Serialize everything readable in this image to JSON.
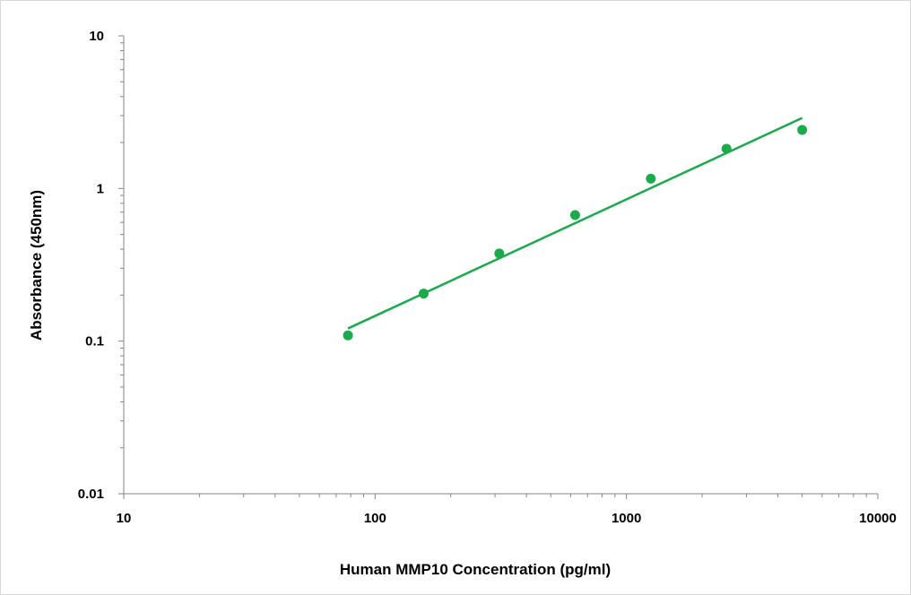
{
  "chart_data": {
    "type": "scatter",
    "title": "",
    "xlabel": "Human MMP10 Concentration (pg/ml)",
    "ylabel": "Absorbance (450nm)",
    "x_scale": "log",
    "y_scale": "log",
    "xlim": [
      10,
      10000
    ],
    "ylim": [
      0.01,
      10
    ],
    "x_ticks": [
      {
        "value": 10,
        "label": "10"
      },
      {
        "value": 100,
        "label": "100"
      },
      {
        "value": 1000,
        "label": "1000"
      },
      {
        "value": 10000,
        "label": "10000"
      }
    ],
    "y_ticks": [
      {
        "value": 0.01,
        "label": "0.01"
      },
      {
        "value": 0.1,
        "label": "0.1"
      },
      {
        "value": 1,
        "label": "1"
      },
      {
        "value": 10,
        "label": "10"
      }
    ],
    "grid": false,
    "legend": "none",
    "series": [
      {
        "type": "scatter",
        "color": "#1aab4b",
        "points": [
          {
            "x": 78,
            "y": 0.109
          },
          {
            "x": 156,
            "y": 0.205
          },
          {
            "x": 312,
            "y": 0.375
          },
          {
            "x": 625,
            "y": 0.67
          },
          {
            "x": 1250,
            "y": 1.16
          },
          {
            "x": 2500,
            "y": 1.82
          },
          {
            "x": 5000,
            "y": 2.42
          }
        ]
      },
      {
        "type": "trendline",
        "color": "#1aab4b",
        "points": [
          {
            "x": 78,
            "y": 0.121
          },
          {
            "x": 5000,
            "y": 2.9
          }
        ]
      }
    ]
  }
}
